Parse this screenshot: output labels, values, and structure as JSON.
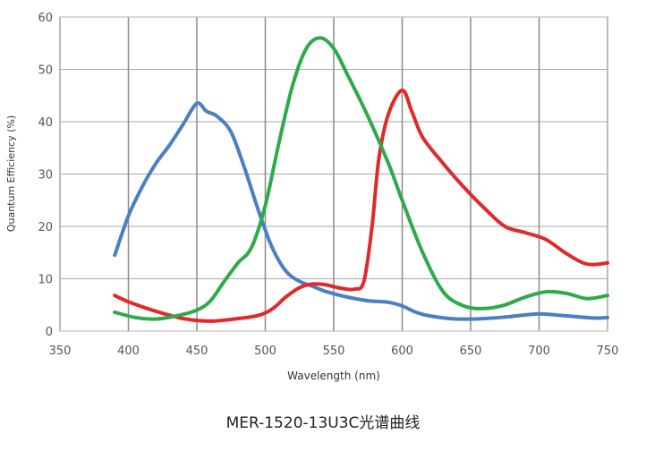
{
  "chart_data": {
    "type": "line",
    "title": "MER-1520-13U3C光谱曲线",
    "xlabel": "Wavelength (nm)",
    "ylabel": "Quantum Efficiency (%)",
    "xlim": [
      350,
      750
    ],
    "ylim": [
      0,
      60
    ],
    "x_ticks": [
      350,
      400,
      450,
      500,
      550,
      600,
      650,
      700,
      750
    ],
    "y_ticks": [
      0,
      10,
      20,
      30,
      40,
      50,
      60
    ],
    "grid": true,
    "legend": "none",
    "series": [
      {
        "color": "#4a7fc1",
        "points": [
          [
            390,
            14.5
          ],
          [
            400,
            22
          ],
          [
            410,
            27.5
          ],
          [
            420,
            32
          ],
          [
            430,
            35.5
          ],
          [
            440,
            39.5
          ],
          [
            450,
            43.5
          ],
          [
            457,
            42
          ],
          [
            465,
            41
          ],
          [
            475,
            38
          ],
          [
            485,
            31
          ],
          [
            495,
            23
          ],
          [
            505,
            16
          ],
          [
            515,
            11.5
          ],
          [
            525,
            9.5
          ],
          [
            535,
            8.5
          ],
          [
            545,
            7.5
          ],
          [
            560,
            6.5
          ],
          [
            575,
            5.8
          ],
          [
            590,
            5.5
          ],
          [
            600,
            4.8
          ],
          [
            610,
            3.6
          ],
          [
            620,
            2.9
          ],
          [
            640,
            2.3
          ],
          [
            660,
            2.4
          ],
          [
            680,
            2.8
          ],
          [
            700,
            3.3
          ],
          [
            720,
            2.9
          ],
          [
            740,
            2.5
          ],
          [
            750,
            2.6
          ]
        ]
      },
      {
        "color": "#e02a2a",
        "points": [
          [
            390,
            6.8
          ],
          [
            400,
            5.6
          ],
          [
            420,
            3.8
          ],
          [
            440,
            2.4
          ],
          [
            460,
            1.9
          ],
          [
            480,
            2.4
          ],
          [
            495,
            3.0
          ],
          [
            505,
            4.2
          ],
          [
            515,
            6.5
          ],
          [
            525,
            8.3
          ],
          [
            535,
            9.0
          ],
          [
            545,
            8.8
          ],
          [
            555,
            8.2
          ],
          [
            565,
            8.0
          ],
          [
            572,
            9.5
          ],
          [
            578,
            20
          ],
          [
            583,
            33
          ],
          [
            590,
            41.5
          ],
          [
            600,
            46
          ],
          [
            607,
            42
          ],
          [
            615,
            37
          ],
          [
            630,
            32
          ],
          [
            645,
            27.5
          ],
          [
            660,
            23.5
          ],
          [
            675,
            20
          ],
          [
            690,
            18.8
          ],
          [
            705,
            17.5
          ],
          [
            720,
            14.8
          ],
          [
            735,
            12.8
          ],
          [
            750,
            13.0
          ]
        ]
      },
      {
        "color": "#2daa4a",
        "points": [
          [
            390,
            3.6
          ],
          [
            405,
            2.6
          ],
          [
            420,
            2.3
          ],
          [
            435,
            2.9
          ],
          [
            450,
            4.0
          ],
          [
            460,
            5.8
          ],
          [
            470,
            9.5
          ],
          [
            480,
            13
          ],
          [
            490,
            16
          ],
          [
            500,
            24
          ],
          [
            510,
            36
          ],
          [
            520,
            47
          ],
          [
            530,
            54
          ],
          [
            540,
            56
          ],
          [
            550,
            54
          ],
          [
            560,
            49
          ],
          [
            575,
            41
          ],
          [
            590,
            32
          ],
          [
            600,
            25
          ],
          [
            615,
            15
          ],
          [
            630,
            7.5
          ],
          [
            645,
            4.8
          ],
          [
            660,
            4.3
          ],
          [
            675,
            5.0
          ],
          [
            690,
            6.5
          ],
          [
            705,
            7.5
          ],
          [
            720,
            7.2
          ],
          [
            735,
            6.2
          ],
          [
            750,
            6.8
          ]
        ]
      }
    ]
  }
}
